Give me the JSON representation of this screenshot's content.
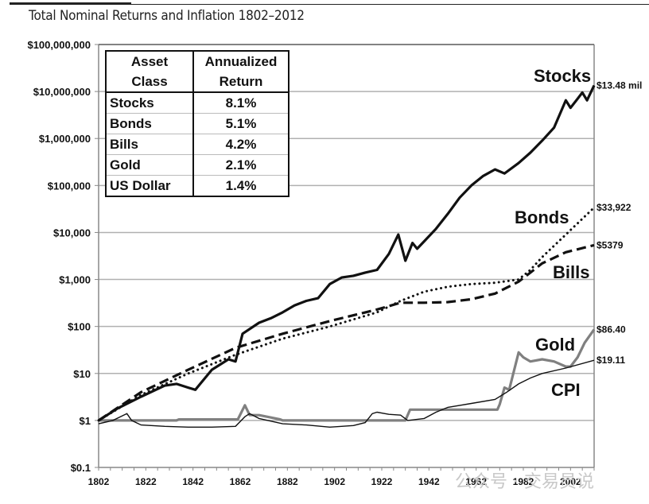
{
  "chart_data": {
    "type": "line",
    "title": "Total Nominal Returns and Inflation 1802–2012",
    "xlabel": "",
    "ylabel": "",
    "yscale": "log",
    "ylim": [
      0.1,
      100000000
    ],
    "xlim": [
      1802,
      2012
    ],
    "grid": "horizontal",
    "y_ticks": [
      0.1,
      1,
      10,
      100,
      1000,
      10000,
      100000,
      1000000,
      10000000,
      100000000
    ],
    "y_tick_labels": [
      "$0.1",
      "$1",
      "$10",
      "$100",
      "$1,000",
      "$10,000",
      "$100,000",
      "$1,000,000",
      "$10,000,000",
      "$100,000,000"
    ],
    "x_ticks": [
      1802,
      1822,
      1842,
      1862,
      1882,
      1902,
      1922,
      1942,
      1962,
      1982,
      2002
    ],
    "x_tick_labels": [
      "1802",
      "1822",
      "1842",
      "1862",
      "1882",
      "1902",
      "1922",
      "1942",
      "1962",
      "1982",
      "2002"
    ],
    "series": [
      {
        "name": "Stocks",
        "style": "solid-thick",
        "color": "#111111",
        "end_label": "$13.48 mil",
        "x": [
          1802,
          1810,
          1820,
          1830,
          1835,
          1840,
          1843,
          1850,
          1857,
          1860,
          1863,
          1870,
          1875,
          1880,
          1885,
          1890,
          1895,
          1900,
          1905,
          1910,
          1915,
          1920,
          1925,
          1929,
          1932,
          1935,
          1937,
          1940,
          1945,
          1950,
          1955,
          1960,
          1965,
          1970,
          1974,
          1980,
          1985,
          1990,
          1995,
          2000,
          2002,
          2005,
          2007,
          2009,
          2012
        ],
        "values": [
          1,
          1.8,
          3.2,
          5.5,
          6,
          5,
          4.5,
          12,
          20,
          18,
          70,
          120,
          150,
          200,
          280,
          350,
          400,
          800,
          1100,
          1200,
          1400,
          1600,
          3500,
          9000,
          2500,
          6000,
          4500,
          6500,
          12000,
          25000,
          55000,
          100000,
          160000,
          220000,
          180000,
          300000,
          500000,
          900000,
          1700000,
          6500000,
          4500000,
          7000000,
          9500000,
          6500000,
          13480000
        ]
      },
      {
        "name": "Bonds",
        "style": "dotted",
        "color": "#111111",
        "end_label": "$33,922",
        "x": [
          1802,
          1820,
          1840,
          1860,
          1880,
          1900,
          1920,
          1930,
          1940,
          1950,
          1960,
          1970,
          1980,
          1985,
          1990,
          2000,
          2012
        ],
        "values": [
          1,
          3.5,
          10,
          25,
          55,
          100,
          200,
          350,
          550,
          700,
          800,
          850,
          1000,
          1600,
          3000,
          9000,
          33922
        ]
      },
      {
        "name": "Bills",
        "style": "dashed",
        "color": "#111111",
        "end_label": "$5379",
        "x": [
          1802,
          1820,
          1840,
          1860,
          1880,
          1900,
          1920,
          1930,
          1940,
          1950,
          1960,
          1970,
          1980,
          1985,
          1990,
          2000,
          2012
        ],
        "values": [
          1,
          4,
          12,
          35,
          70,
          130,
          230,
          320,
          320,
          330,
          380,
          500,
          900,
          1400,
          2200,
          3800,
          5379
        ]
      },
      {
        "name": "Gold",
        "style": "solid-gray",
        "color": "#808080",
        "end_label": "$86.40",
        "x": [
          1802,
          1835,
          1836,
          1861,
          1864,
          1866,
          1870,
          1879,
          1880,
          1932,
          1934,
          1971,
          1972,
          1974,
          1976,
          1980,
          1982,
          1985,
          1990,
          1995,
          2000,
          2002,
          2005,
          2008,
          2012
        ],
        "values": [
          1,
          1,
          1.05,
          1.05,
          2.1,
          1.3,
          1.3,
          1.05,
          1.0,
          1.0,
          1.7,
          1.7,
          2.2,
          5,
          4.5,
          28,
          22,
          18,
          20,
          18,
          14,
          14,
          22,
          45,
          86.4
        ]
      },
      {
        "name": "CPI",
        "style": "solid-thin",
        "color": "#111111",
        "end_label": "$19.11",
        "x": [
          1802,
          1808,
          1814,
          1816,
          1820,
          1830,
          1840,
          1850,
          1860,
          1864,
          1866,
          1870,
          1880,
          1890,
          1900,
          1910,
          1915,
          1918,
          1920,
          1925,
          1930,
          1933,
          1940,
          1945,
          1950,
          1960,
          1970,
          1975,
          1980,
          1985,
          1990,
          2000,
          2012
        ],
        "values": [
          0.85,
          1.0,
          1.4,
          1.0,
          0.8,
          0.75,
          0.72,
          0.72,
          0.75,
          1.2,
          1.4,
          1.1,
          0.85,
          0.8,
          0.72,
          0.78,
          0.9,
          1.4,
          1.5,
          1.35,
          1.3,
          1.0,
          1.1,
          1.5,
          1.9,
          2.3,
          2.8,
          4,
          6,
          8,
          10,
          13,
          19.11
        ]
      }
    ],
    "series_labels": [
      "Stocks",
      "Bonds",
      "Bills",
      "Gold",
      "CPI"
    ],
    "table": {
      "headers": [
        "Asset Class",
        "Annualized Return"
      ],
      "rows": [
        [
          "Stocks",
          "8.1%"
        ],
        [
          "Bonds",
          "5.1%"
        ],
        [
          "Bills",
          "4.2%"
        ],
        [
          "Gold",
          "2.1%"
        ],
        [
          "US Dollar",
          "1.4%"
        ]
      ]
    }
  },
  "header": {
    "title": "Total Nominal Returns and Inflation 1802–2012"
  },
  "legend_table": {
    "h1a": "Asset",
    "h1b": "Class",
    "h2a": "Annualized",
    "h2b": "Return",
    "rows": [
      {
        "cls": "Stocks",
        "val": "8.1%"
      },
      {
        "cls": "Bonds",
        "val": "5.1%"
      },
      {
        "cls": "Bills",
        "val": "4.2%"
      },
      {
        "cls": "Gold",
        "val": "2.1%"
      },
      {
        "cls": "US Dollar",
        "val": "1.4%"
      }
    ]
  },
  "watermark": "公众号 · 交易员说"
}
